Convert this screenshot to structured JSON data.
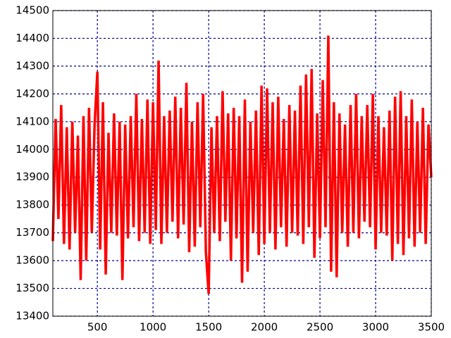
{
  "chart_data": {
    "type": "line",
    "x": [
      100,
      125,
      150,
      175,
      200,
      225,
      250,
      275,
      300,
      325,
      350,
      375,
      400,
      425,
      450,
      475,
      500,
      525,
      550,
      575,
      600,
      625,
      650,
      675,
      700,
      725,
      750,
      775,
      800,
      825,
      850,
      875,
      900,
      925,
      950,
      975,
      1000,
      1025,
      1050,
      1075,
      1100,
      1125,
      1150,
      1175,
      1200,
      1225,
      1250,
      1275,
      1300,
      1325,
      1350,
      1375,
      1400,
      1425,
      1450,
      1475,
      1500,
      1525,
      1550,
      1575,
      1600,
      1625,
      1650,
      1675,
      1700,
      1725,
      1750,
      1775,
      1800,
      1825,
      1850,
      1875,
      1900,
      1925,
      1950,
      1975,
      2000,
      2025,
      2050,
      2075,
      2100,
      2125,
      2150,
      2175,
      2200,
      2225,
      2250,
      2275,
      2300,
      2325,
      2350,
      2375,
      2400,
      2425,
      2450,
      2475,
      2500,
      2525,
      2550,
      2575,
      2600,
      2625,
      2650,
      2675,
      2700,
      2725,
      2750,
      2775,
      2800,
      2825,
      2850,
      2875,
      2900,
      2925,
      2950,
      2975,
      3000,
      3025,
      3050,
      3075,
      3100,
      3125,
      3150,
      3175,
      3200,
      3225,
      3250,
      3275,
      3300,
      3325,
      3350,
      3375,
      3400,
      3425,
      3450,
      3475,
      3500
    ],
    "series": [
      {
        "color": "#ff0000",
        "values": [
          13670,
          14110,
          13750,
          14160,
          13660,
          14080,
          13640,
          14100,
          13700,
          14050,
          13530,
          14120,
          13600,
          14150,
          13700,
          14090,
          14280,
          13640,
          14170,
          13550,
          14060,
          13700,
          14130,
          13690,
          14100,
          13530,
          14090,
          13680,
          14120,
          13720,
          14200,
          13670,
          14110,
          13700,
          14180,
          13660,
          14170,
          13710,
          14320,
          13660,
          14120,
          13700,
          14140,
          13740,
          14190,
          13680,
          14150,
          13730,
          14240,
          13630,
          14100,
          13650,
          14170,
          13720,
          14200,
          13630,
          13480,
          14080,
          13700,
          14120,
          13670,
          14210,
          13740,
          14130,
          13600,
          14150,
          13680,
          14120,
          13520,
          14180,
          13560,
          14100,
          13700,
          14140,
          13620,
          14230,
          13660,
          14220,
          13700,
          14170,
          13640,
          14190,
          13720,
          14110,
          13650,
          14160,
          13700,
          14140,
          13690,
          14230,
          13660,
          14270,
          13720,
          14290,
          13610,
          14130,
          13680,
          14250,
          13720,
          14410,
          13560,
          14170,
          13540,
          14130,
          13700,
          14090,
          13650,
          14160,
          13700,
          14200,
          13680,
          14120,
          13740,
          14160,
          13720,
          14200,
          13640,
          14120,
          13700,
          14080,
          13690,
          14140,
          13600,
          14190,
          13660,
          14210,
          13620,
          14120,
          13680,
          14180,
          13650,
          14100,
          13700,
          14150,
          13660,
          14090,
          13900
        ]
      }
    ],
    "xlim": [
      100,
      3500
    ],
    "xticks": [
      500,
      1000,
      1500,
      2000,
      2500,
      3000,
      3500
    ],
    "ylim": [
      13400,
      14500
    ],
    "yticks": [
      13400,
      13500,
      13600,
      13700,
      13800,
      13900,
      14000,
      14100,
      14200,
      14300,
      14400,
      14500
    ],
    "grid": true
  }
}
